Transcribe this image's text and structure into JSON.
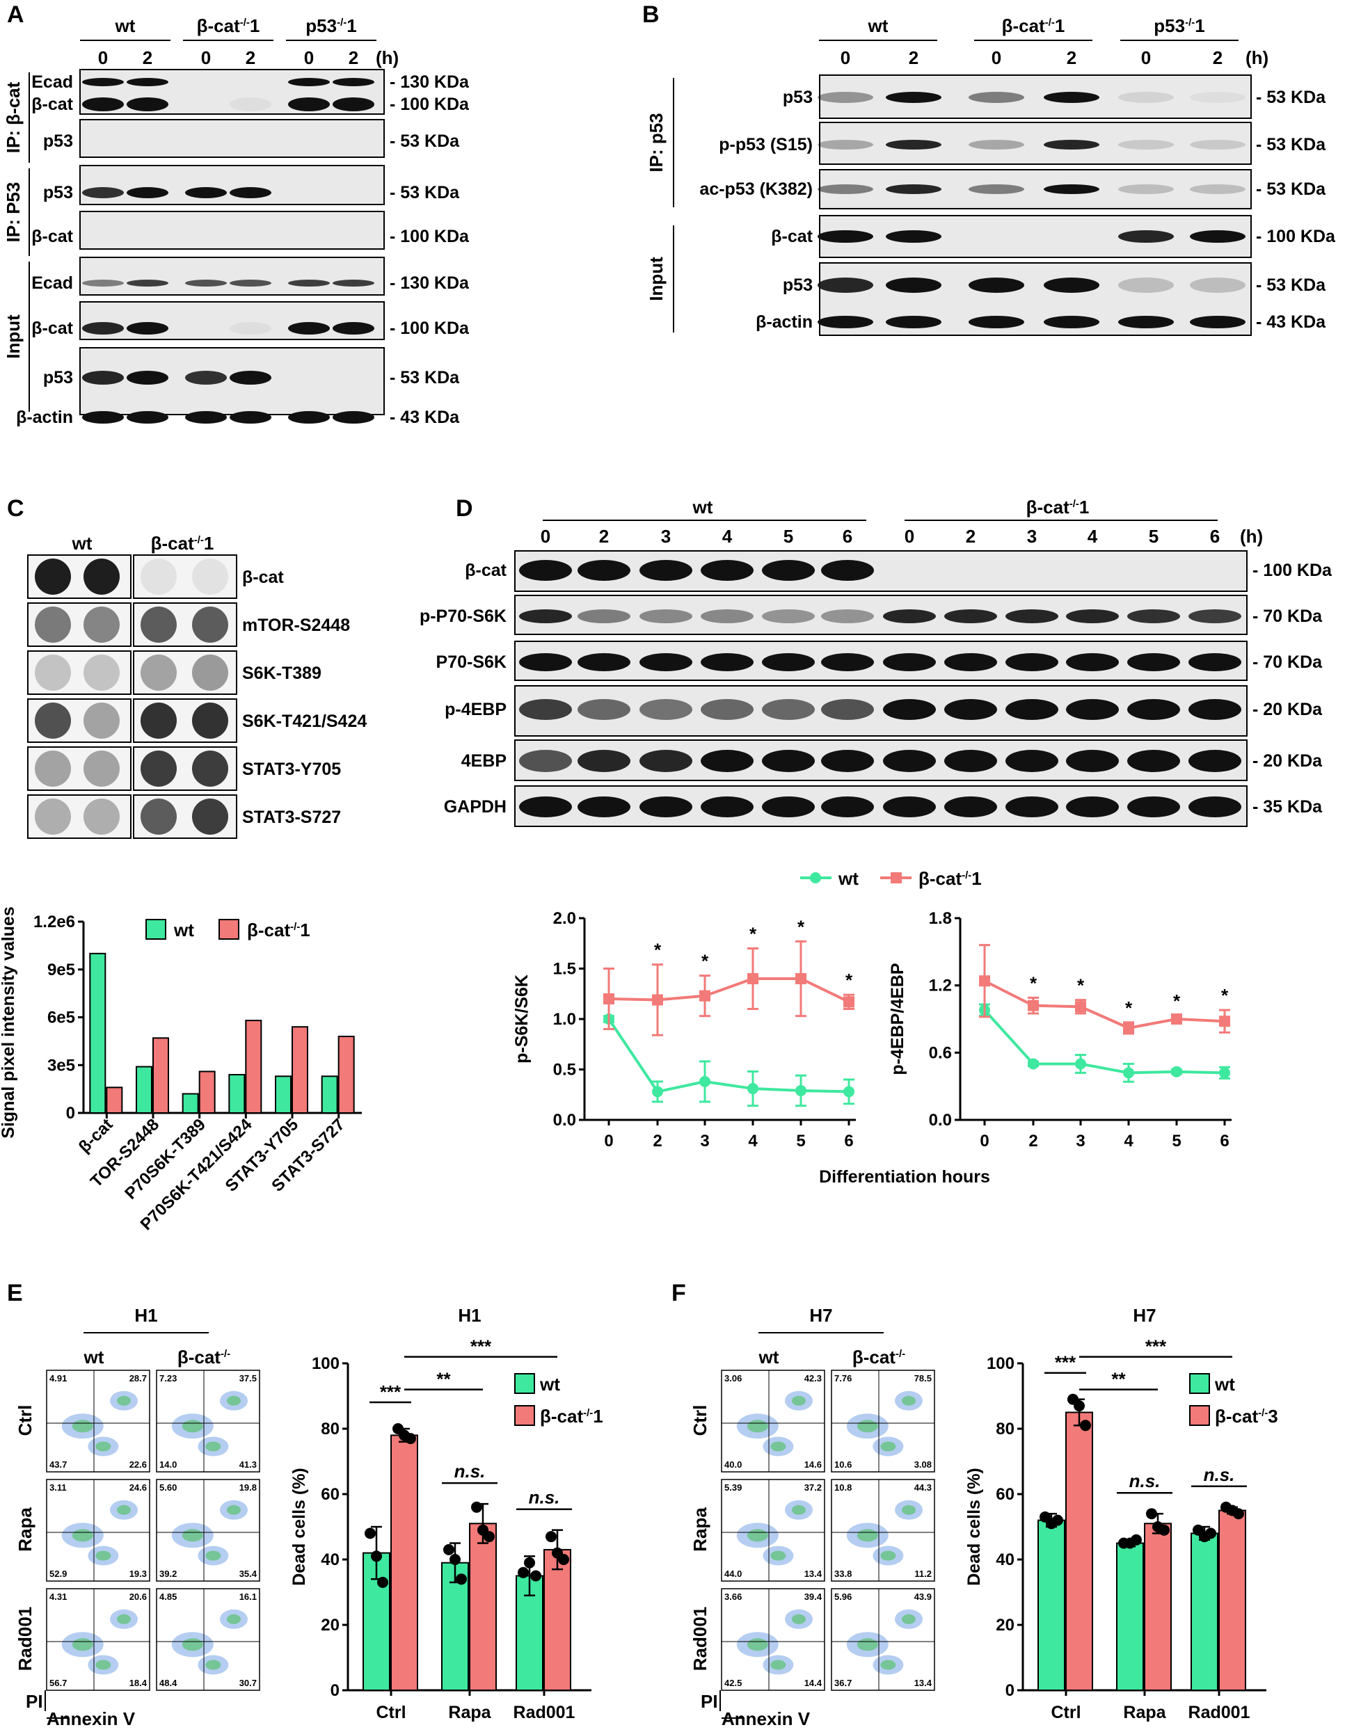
{
  "panelA": {
    "letter": "A",
    "groups": [
      "wt",
      "β-cat-/-1",
      "p53-/-1"
    ],
    "timepoints": [
      "0",
      "2",
      "0",
      "2",
      "0",
      "2"
    ],
    "time_unit": "(h)",
    "sections": [
      {
        "label": "IP: β-cat"
      },
      {
        "label": "IP: P53"
      },
      {
        "label": "Input"
      }
    ],
    "rows": [
      {
        "label": "Ecad",
        "kda": "130 KDa"
      },
      {
        "label": "β-cat",
        "kda": "100 KDa"
      },
      {
        "label": "p53",
        "kda": "53 KDa"
      },
      {
        "label": "p53",
        "kda": "53 KDa"
      },
      {
        "label": "β-cat",
        "kda": "100 KDa"
      },
      {
        "label": "Ecad",
        "kda": "130 KDa"
      },
      {
        "label": "β-cat",
        "kda": "100 KDa"
      },
      {
        "label": "p53",
        "kda": "53 KDa"
      },
      {
        "label": "β-actin",
        "kda": "43 KDa"
      }
    ]
  },
  "panelB": {
    "letter": "B",
    "groups": [
      "wt",
      "β-cat-/-1",
      "p53-/-1"
    ],
    "timepoints": [
      "0",
      "2",
      "0",
      "2",
      "0",
      "2"
    ],
    "time_unit": "(h)",
    "sections": [
      {
        "label": "IP: p53"
      },
      {
        "label": "Input"
      }
    ],
    "rows": [
      {
        "label": "p53",
        "kda": "53 KDa"
      },
      {
        "label": "p-p53 (S15)",
        "kda": "53 KDa"
      },
      {
        "label": "ac-p53 (K382)",
        "kda": "53 KDa"
      },
      {
        "label": "β-cat",
        "kda": "100 KDa"
      },
      {
        "label": "p53",
        "kda": "53 KDa"
      },
      {
        "label": "β-actin",
        "kda": "43 KDa"
      }
    ]
  },
  "panelC": {
    "letter": "C",
    "array_headers": [
      "wt",
      "β-cat-/-1"
    ],
    "array_rows": [
      "β-cat",
      "mTOR-S2448",
      "S6K-T389",
      "S6K-T421/S424",
      "STAT3-Y705",
      "STAT3-S727"
    ]
  },
  "panelD": {
    "letter": "D",
    "groups": [
      "wt",
      "β-cat-/-1"
    ],
    "timepoints": [
      "0",
      "2",
      "3",
      "4",
      "5",
      "6",
      "0",
      "2",
      "3",
      "4",
      "5",
      "6"
    ],
    "time_unit": "(h)",
    "rows": [
      {
        "label": "β-cat",
        "kda": "100 KDa"
      },
      {
        "label": "p-P70-S6K",
        "kda": "70 KDa"
      },
      {
        "label": "P70-S6K",
        "kda": "70 KDa"
      },
      {
        "label": "p-4EBP",
        "kda": "20 KDa"
      },
      {
        "label": "4EBP",
        "kda": "20 KDa"
      },
      {
        "label": "GAPDH",
        "kda": "35 KDa"
      }
    ],
    "legend": [
      "wt",
      "β-cat-/-1"
    ],
    "xlabel": "Differentiation hours"
  },
  "panelE": {
    "letter": "E",
    "cell_line": "H1",
    "flow_groups": [
      "wt",
      "β-cat-/-"
    ],
    "flow_rows": [
      "Ctrl",
      "Rapa",
      "Rad001"
    ],
    "axis_y": "PI",
    "axis_x": "Annexin V",
    "quadrants": [
      [
        [
          "4.91",
          "28.7",
          "43.7",
          "22.6"
        ],
        [
          "7.23",
          "37.5",
          "14.0",
          "41.3"
        ]
      ],
      [
        [
          "3.11",
          "24.6",
          "52.9",
          "19.3"
        ],
        [
          "5.60",
          "19.8",
          "39.2",
          "35.4"
        ]
      ],
      [
        [
          "4.31",
          "20.6",
          "56.7",
          "18.4"
        ],
        [
          "4.85",
          "16.1",
          "48.4",
          "30.7"
        ]
      ]
    ]
  },
  "panelF": {
    "letter": "F",
    "cell_line": "H7",
    "flow_groups": [
      "wt",
      "β-cat-/-"
    ],
    "flow_rows": [
      "Ctrl",
      "Rapa",
      "Rad001"
    ],
    "axis_y": "PI",
    "axis_x": "Annexin V",
    "quadrants": [
      [
        [
          "3.06",
          "42.3",
          "40.0",
          "14.6"
        ],
        [
          "7.76",
          "78.5",
          "10.6",
          "3.08"
        ]
      ],
      [
        [
          "5.39",
          "37.2",
          "44.0",
          "13.4"
        ],
        [
          "10.8",
          "44.3",
          "33.8",
          "11.2"
        ]
      ],
      [
        [
          "3.66",
          "39.4",
          "42.5",
          "14.4"
        ],
        [
          "5.96",
          "43.9",
          "36.7",
          "13.4"
        ]
      ]
    ]
  },
  "colors": {
    "wt": "#3ee89e",
    "ko": "#f27a78"
  },
  "chart_data": [
    {
      "id": "C_bar",
      "type": "bar",
      "ylabel": "Signal pixel intensity values",
      "categories": [
        "β-cat",
        "TOR-S2448",
        "P70S6K-T389",
        "P70S6K-T421/S424",
        "STAT3-Y705",
        "STAT3-S727"
      ],
      "series": [
        {
          "name": "wt",
          "values": [
            1000000,
            290000,
            120000,
            240000,
            230000,
            230000
          ]
        },
        {
          "name": "β-cat-/-1",
          "values": [
            160000,
            470000,
            260000,
            580000,
            540000,
            480000
          ]
        }
      ],
      "ylim": [
        0,
        1200000
      ],
      "yticks": [
        "0",
        "3e5",
        "6e5",
        "9e5",
        "1.2e6"
      ],
      "ytick_values": [
        0,
        300000,
        600000,
        900000,
        1200000
      ]
    },
    {
      "id": "D_s6k",
      "type": "line",
      "ylabel": "p-S6K/S6K",
      "x": [
        0,
        2,
        3,
        4,
        5,
        6
      ],
      "ylim": [
        0,
        2.0
      ],
      "yticks": [
        "0.0",
        "0.5",
        "1.0",
        "1.5",
        "2.0"
      ],
      "ytick_values": [
        0,
        0.5,
        1,
        1.5,
        2
      ],
      "series": [
        {
          "name": "wt",
          "values": [
            1.0,
            0.28,
            0.38,
            0.31,
            0.29,
            0.28
          ],
          "err": [
            0.03,
            0.1,
            0.2,
            0.17,
            0.15,
            0.12
          ]
        },
        {
          "name": "β-cat-/-1",
          "values": [
            1.2,
            1.19,
            1.23,
            1.4,
            1.4,
            1.17
          ],
          "err": [
            0.3,
            0.35,
            0.2,
            0.3,
            0.37,
            0.07
          ]
        }
      ],
      "significance": [
        "",
        "*",
        "*",
        "*",
        "*",
        "*"
      ]
    },
    {
      "id": "D_4ebp",
      "type": "line",
      "ylabel": "p-4EBP/4EBP",
      "x": [
        0,
        2,
        3,
        4,
        5,
        6
      ],
      "ylim": [
        0,
        1.8
      ],
      "yticks": [
        "0.0",
        "0.6",
        "1.2",
        "1.8"
      ],
      "ytick_values": [
        0,
        0.6,
        1.2,
        1.8
      ],
      "series": [
        {
          "name": "wt",
          "values": [
            0.98,
            0.5,
            0.5,
            0.42,
            0.43,
            0.42
          ],
          "err": [
            0.05,
            0.02,
            0.08,
            0.08,
            0.02,
            0.05
          ]
        },
        {
          "name": "β-cat-/-1",
          "values": [
            1.24,
            1.02,
            1.01,
            0.82,
            0.9,
            0.88
          ],
          "err": [
            0.32,
            0.07,
            0.06,
            0.05,
            0.03,
            0.1
          ]
        }
      ],
      "significance": [
        "",
        "*",
        "*",
        "*",
        "*",
        "*"
      ]
    },
    {
      "id": "E_bar",
      "type": "bar",
      "title": "H1",
      "ylabel": "Dead cells (%)",
      "categories": [
        "Ctrl",
        "Rapa",
        "Rad001"
      ],
      "ylim": [
        0,
        100
      ],
      "yticks": [
        "0",
        "20",
        "40",
        "60",
        "80",
        "100"
      ],
      "ytick_values": [
        0,
        20,
        40,
        60,
        80,
        100
      ],
      "series": [
        {
          "name": "wt",
          "values": [
            42,
            39,
            35
          ],
          "err": [
            8,
            6,
            6
          ],
          "points": [
            [
              48,
              41,
              33
            ],
            [
              43,
              40,
              34
            ],
            [
              36,
              39,
              35
            ]
          ]
        },
        {
          "name": "β-cat-/-1",
          "values": [
            78,
            51,
            43
          ],
          "err": [
            2,
            6,
            6
          ],
          "points": [
            [
              80,
              78,
              77
            ],
            [
              56,
              49,
              47
            ],
            [
              47,
              42,
              40
            ]
          ]
        }
      ],
      "significance": [
        {
          "label": "***",
          "from": "wt Ctrl",
          "to": "β-cat-/-1 Ctrl"
        },
        {
          "label": "**",
          "from": "β-cat-/-1 Ctrl",
          "to": "β-cat-/-1 Rapa"
        },
        {
          "label": "***",
          "from": "β-cat-/-1 Ctrl",
          "to": "β-cat-/-1 Rad001"
        },
        {
          "label": "n.s.",
          "group": "Rapa"
        },
        {
          "label": "n.s.",
          "group": "Rad001"
        }
      ]
    },
    {
      "id": "F_bar",
      "type": "bar",
      "title": "H7",
      "ylabel": "Dead cells (%)",
      "categories": [
        "Ctrl",
        "Rapa",
        "Rad001"
      ],
      "ylim": [
        0,
        100
      ],
      "yticks": [
        "0",
        "20",
        "40",
        "60",
        "80",
        "100"
      ],
      "ytick_values": [
        0,
        20,
        40,
        60,
        80,
        100
      ],
      "series": [
        {
          "name": "wt",
          "values": [
            52,
            45,
            48
          ],
          "err": [
            2,
            1,
            2
          ],
          "points": [
            [
              53,
              51,
              52
            ],
            [
              45,
              45,
              46
            ],
            [
              49,
              47,
              48
            ]
          ]
        },
        {
          "name": "β-cat-/-3",
          "values": [
            85,
            51,
            55
          ],
          "err": [
            4,
            3,
            1
          ],
          "points": [
            [
              89,
              87,
              81
            ],
            [
              54,
              50,
              49
            ],
            [
              56,
              55,
              54
            ]
          ]
        }
      ],
      "significance": [
        {
          "label": "***",
          "from": "wt Ctrl",
          "to": "β-cat-/-3 Ctrl"
        },
        {
          "label": "**",
          "from": "β-cat-/-3 Ctrl",
          "to": "β-cat-/-3 Rapa"
        },
        {
          "label": "***",
          "from": "β-cat-/-3 Ctrl",
          "to": "β-cat-/-3 Rad001"
        },
        {
          "label": "n.s.",
          "group": "Rapa"
        },
        {
          "label": "n.s.",
          "group": "Rad001"
        }
      ]
    }
  ]
}
